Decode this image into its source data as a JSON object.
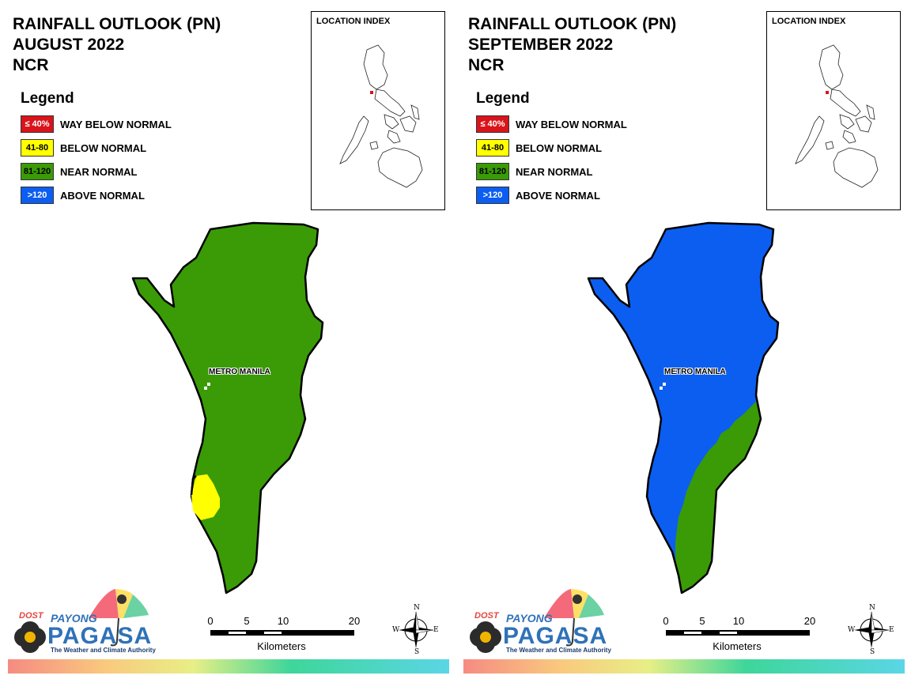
{
  "colors": {
    "way_below": "#d9141a",
    "below": "#ffff00",
    "near": "#3a9b06",
    "above": "#0c5ef1"
  },
  "panels": [
    {
      "title_line1": "RAINFALL OUTLOOK (PN)",
      "title_line2": "AUGUST 2022",
      "title_line3": "NCR",
      "legend_heading": "Legend",
      "legend": [
        {
          "range": "≤ 40%",
          "label": "WAY BELOW NORMAL"
        },
        {
          "range": "41-80",
          "label": "BELOW NORMAL"
        },
        {
          "range": "81-120",
          "label": "NEAR NORMAL"
        },
        {
          "range": ">120",
          "label": "ABOVE NORMAL"
        }
      ],
      "location_index": "LOCATION INDEX",
      "place_label": "METRO MANILA",
      "map_category": "NEAR NORMAL with small BELOW NORMAL area in the southwest",
      "scale_ticks": [
        "0",
        "5",
        "10",
        "20"
      ],
      "scale_units": "Kilometers",
      "compass": {
        "n": "N",
        "s": "S",
        "e": "E",
        "w": "W"
      },
      "logo": {
        "dost": "DOST",
        "payong": "PAYONG",
        "pagasa": "PAGASA",
        "tagline": "The Weather and Climate Authority"
      }
    },
    {
      "title_line1": "RAINFALL OUTLOOK (PN)",
      "title_line2": "SEPTEMBER 2022",
      "title_line3": "NCR",
      "legend_heading": "Legend",
      "legend": [
        {
          "range": "≤ 40%",
          "label": "WAY BELOW NORMAL"
        },
        {
          "range": "41-80",
          "label": "BELOW NORMAL"
        },
        {
          "range": "81-120",
          "label": "NEAR NORMAL"
        },
        {
          "range": ">120",
          "label": "ABOVE NORMAL"
        }
      ],
      "location_index": "LOCATION INDEX",
      "place_label": "METRO MANILA",
      "map_category": "ABOVE NORMAL with NEAR NORMAL strip along the southeast",
      "scale_ticks": [
        "0",
        "5",
        "10",
        "20"
      ],
      "scale_units": "Kilometers",
      "compass": {
        "n": "N",
        "s": "S",
        "e": "E",
        "w": "W"
      },
      "logo": {
        "dost": "DOST",
        "payong": "PAYONG",
        "pagasa": "PAGASA",
        "tagline": "The Weather and Climate Authority"
      }
    }
  ]
}
